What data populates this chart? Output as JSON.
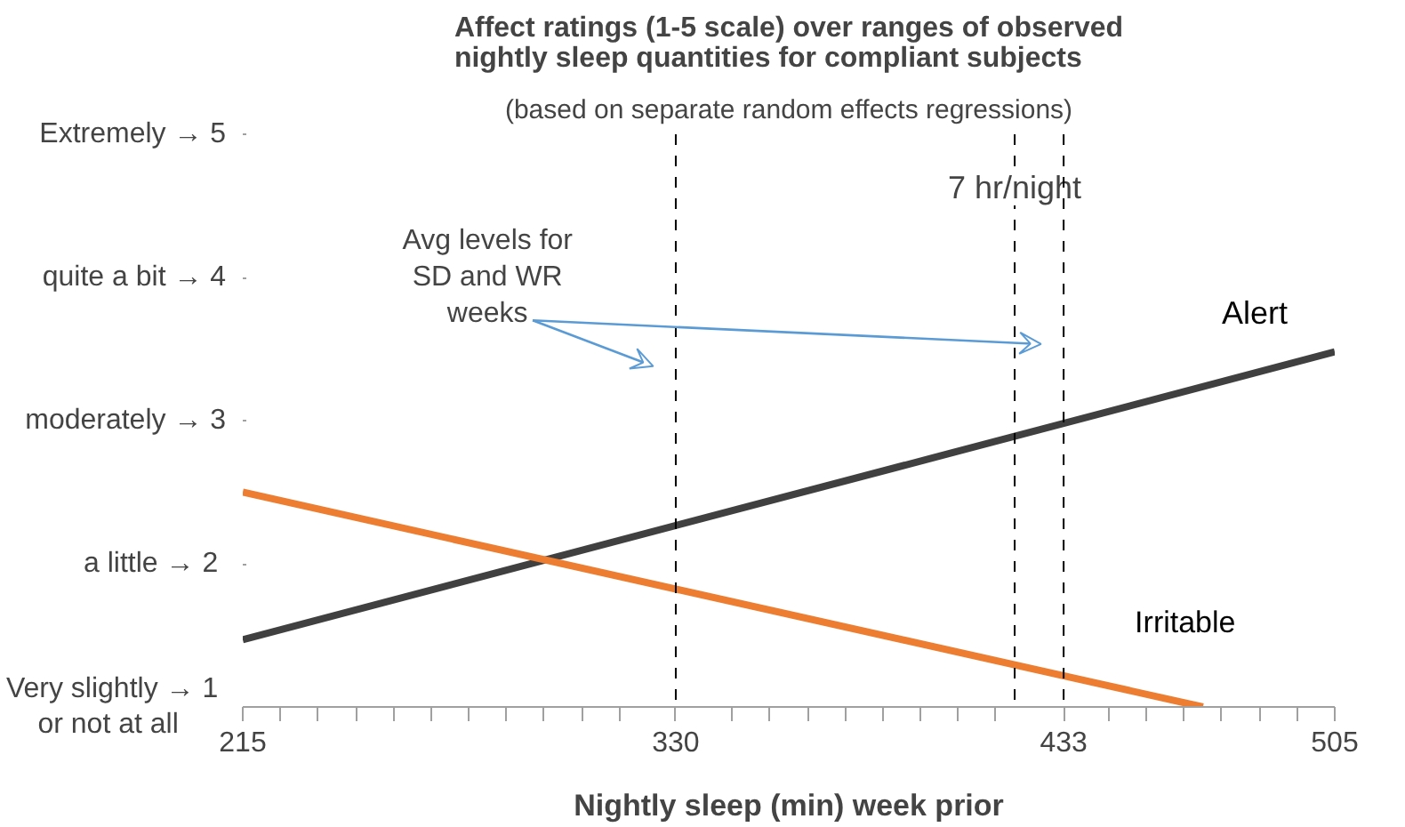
{
  "chart_data": {
    "type": "line",
    "title": "Affect ratings (1-5 scale) over ranges of observed\nnightly sleep quantities for compliant subjects",
    "subtitle": "(based on separate random effects regressions)",
    "xlabel": "Nightly sleep (min) week prior",
    "series": [
      {
        "name": "Alert",
        "color": "#404040",
        "x": [
          215,
          505
        ],
        "values": [
          1.47,
          3.48
        ]
      },
      {
        "name": "Irritable",
        "color": "#ed7d31",
        "x": [
          215,
          470
        ],
        "values": [
          2.5,
          1.0
        ]
      }
    ],
    "xlim": [
      215,
      505
    ],
    "xticks": [
      215,
      {
        "value": 225,
        "label": null
      },
      {
        "value": 235,
        "label": null
      },
      {
        "value": 245,
        "label": null
      },
      {
        "value": 255,
        "label": null
      },
      {
        "value": 265,
        "label": null
      },
      {
        "value": 275,
        "label": null
      },
      {
        "value": 285,
        "label": null
      },
      {
        "value": 295,
        "label": null
      },
      {
        "value": 305,
        "label": null
      },
      {
        "value": 315,
        "label": null
      },
      330,
      {
        "value": 345,
        "label": null
      },
      {
        "value": 355,
        "label": null
      },
      {
        "value": 365,
        "label": null
      },
      {
        "value": 375,
        "label": null
      },
      {
        "value": 385,
        "label": null
      },
      {
        "value": 395,
        "label": null
      },
      {
        "value": 405,
        "label": null
      },
      {
        "value": 415,
        "label": null
      },
      433,
      {
        "value": 445,
        "label": null
      },
      {
        "value": 455,
        "label": null
      },
      {
        "value": 465,
        "label": null
      },
      {
        "value": 475,
        "label": null
      },
      {
        "value": 485,
        "label": null
      },
      {
        "value": 495,
        "label": null
      },
      505
    ],
    "ylim": [
      1,
      5
    ],
    "yticks": [
      {
        "value": 1,
        "label": "Very slightly  →  1\nor not at all       "
      },
      {
        "value": 2,
        "label": "a little  →  2"
      },
      {
        "value": 3,
        "label": "moderately →  3"
      },
      {
        "value": 4,
        "label": "quite a bit →  4"
      },
      {
        "value": 5,
        "label": "Extremely →  5"
      }
    ],
    "ref_lines": [
      {
        "axis": "x",
        "value": 330,
        "label": null,
        "color": "#000000",
        "line_style": "dashed"
      },
      {
        "axis": "x",
        "value": 420,
        "label": "7 hr/night",
        "color": "#000000",
        "line_style": "dashed"
      },
      {
        "axis": "x",
        "value": 433,
        "label": null,
        "color": "#000000",
        "line_style": "dashed"
      }
    ],
    "annotations": [
      "Avg levels for\nSD and WR\nweeks"
    ],
    "grid": false,
    "line_style": "solid",
    "marker": "none"
  }
}
